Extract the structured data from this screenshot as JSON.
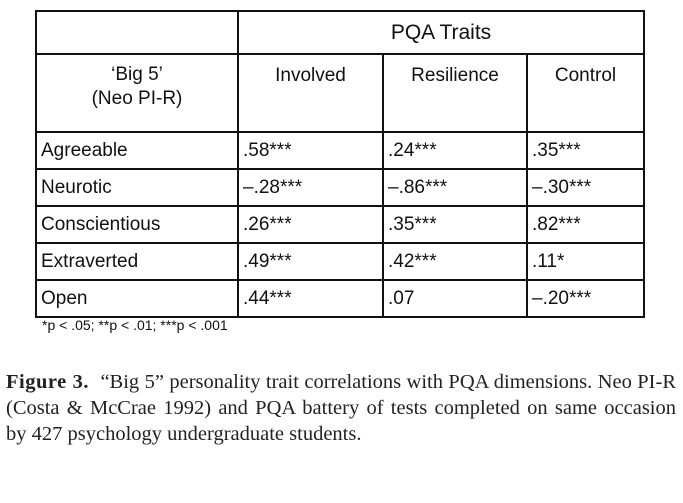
{
  "table": {
    "group_header": "PQA Traits",
    "row_header_label": "‘Big 5’\n(Neo PI-R)",
    "columns": [
      "Involved",
      "Resilience",
      "Control"
    ],
    "rows": [
      {
        "label": "Agreeable",
        "values": [
          ".58***",
          ".24***",
          ".35***"
        ]
      },
      {
        "label": "Neurotic",
        "values": [
          "–.28***",
          "–.86***",
          "–.30***"
        ]
      },
      {
        "label": "Conscientious",
        "values": [
          ".26***",
          ".35***",
          ".82***"
        ]
      },
      {
        "label": "Extraverted",
        "values": [
          ".49***",
          ".42***",
          ".11*"
        ]
      },
      {
        "label": "Open",
        "values": [
          ".44***",
          ".07",
          "–.20***"
        ]
      }
    ]
  },
  "footnote": "*p < .05; **p < .01; ***p < .001",
  "caption": {
    "label": "Figure 3.",
    "text": "“Big 5” personality trait correlations with PQA dimensions. Neo PI-R (Costa & McCrae 1992) and PQA battery of tests completed on same occasion by 427 psychology undergraduate students."
  }
}
